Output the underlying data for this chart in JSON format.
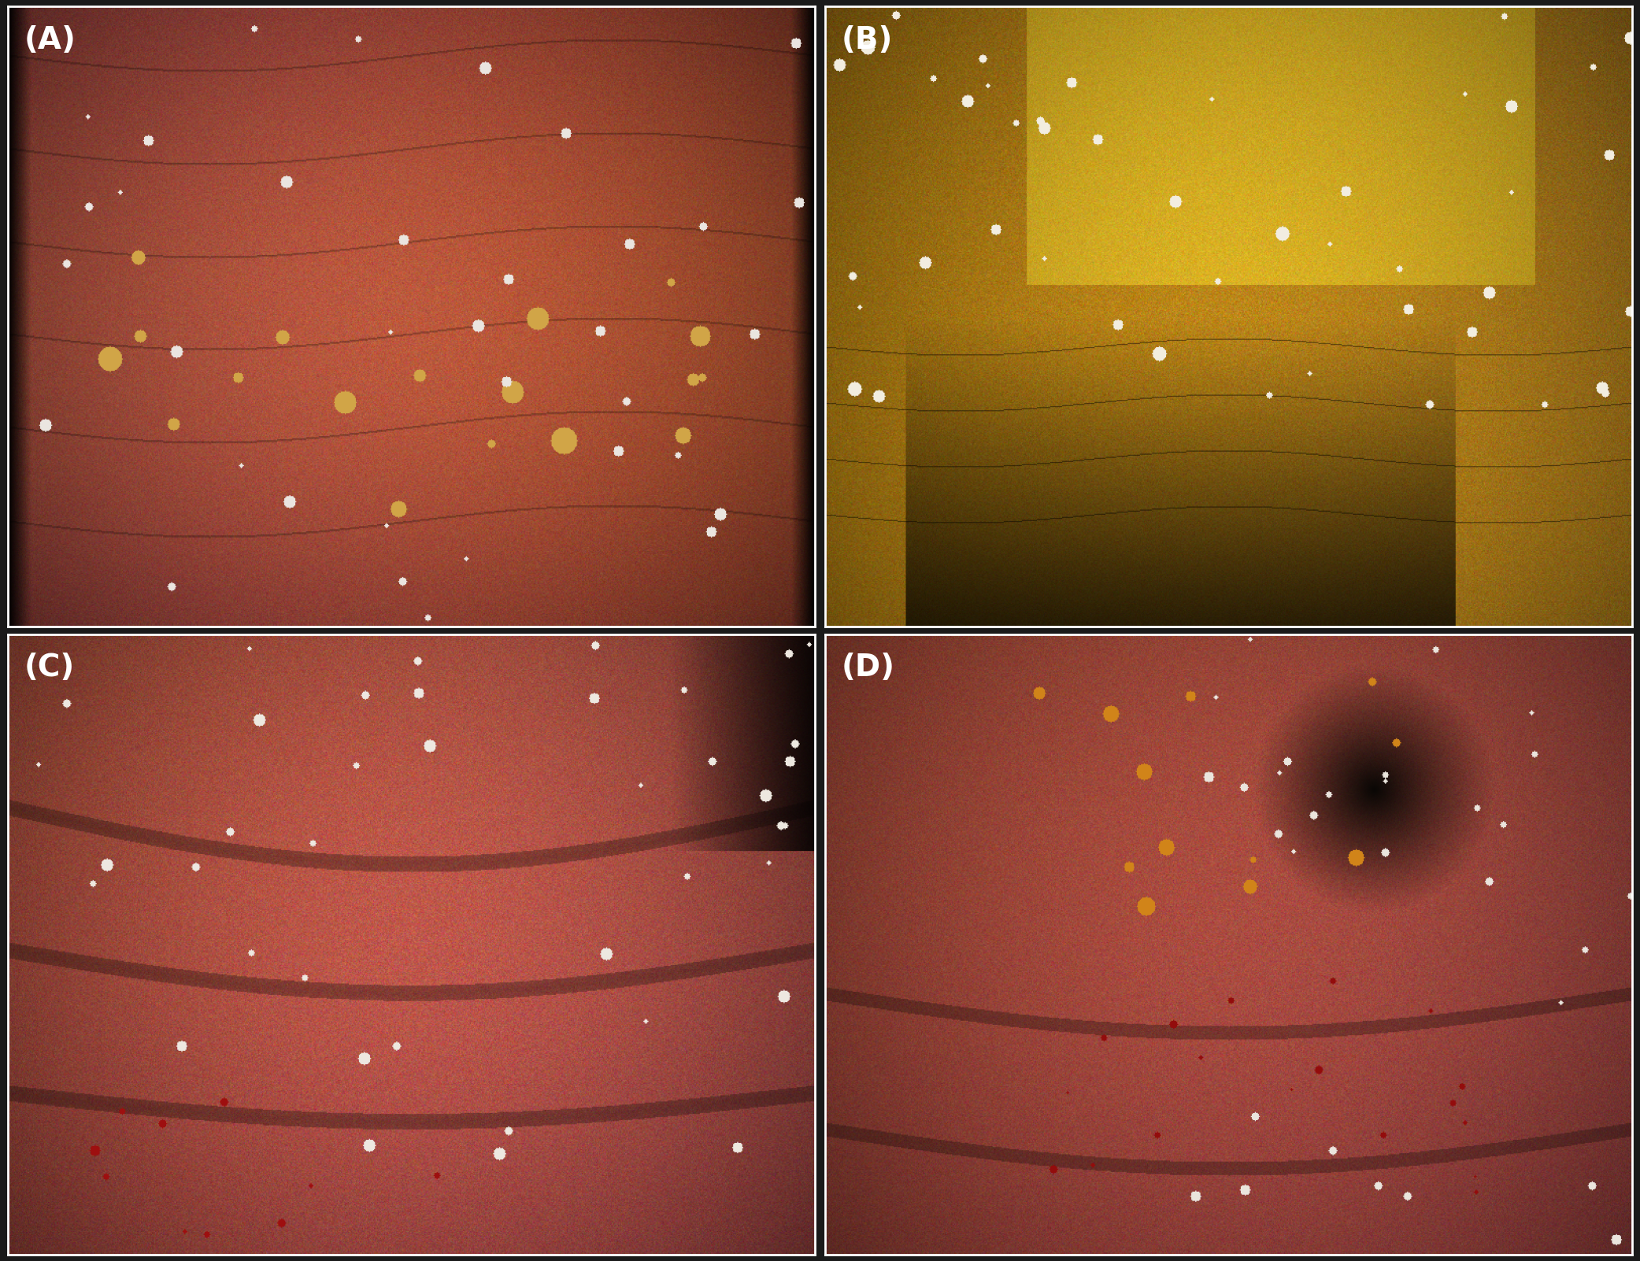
{
  "background_color": "#1a1a1a",
  "panel_labels": [
    "(A)",
    "(B)",
    "(C)",
    "(D)"
  ],
  "label_color": "#ffffff",
  "label_fontsize": 28,
  "border_color": "#ffffff",
  "border_linewidth": 2,
  "figsize": [
    20.83,
    16.02
  ],
  "dpi": 100
}
